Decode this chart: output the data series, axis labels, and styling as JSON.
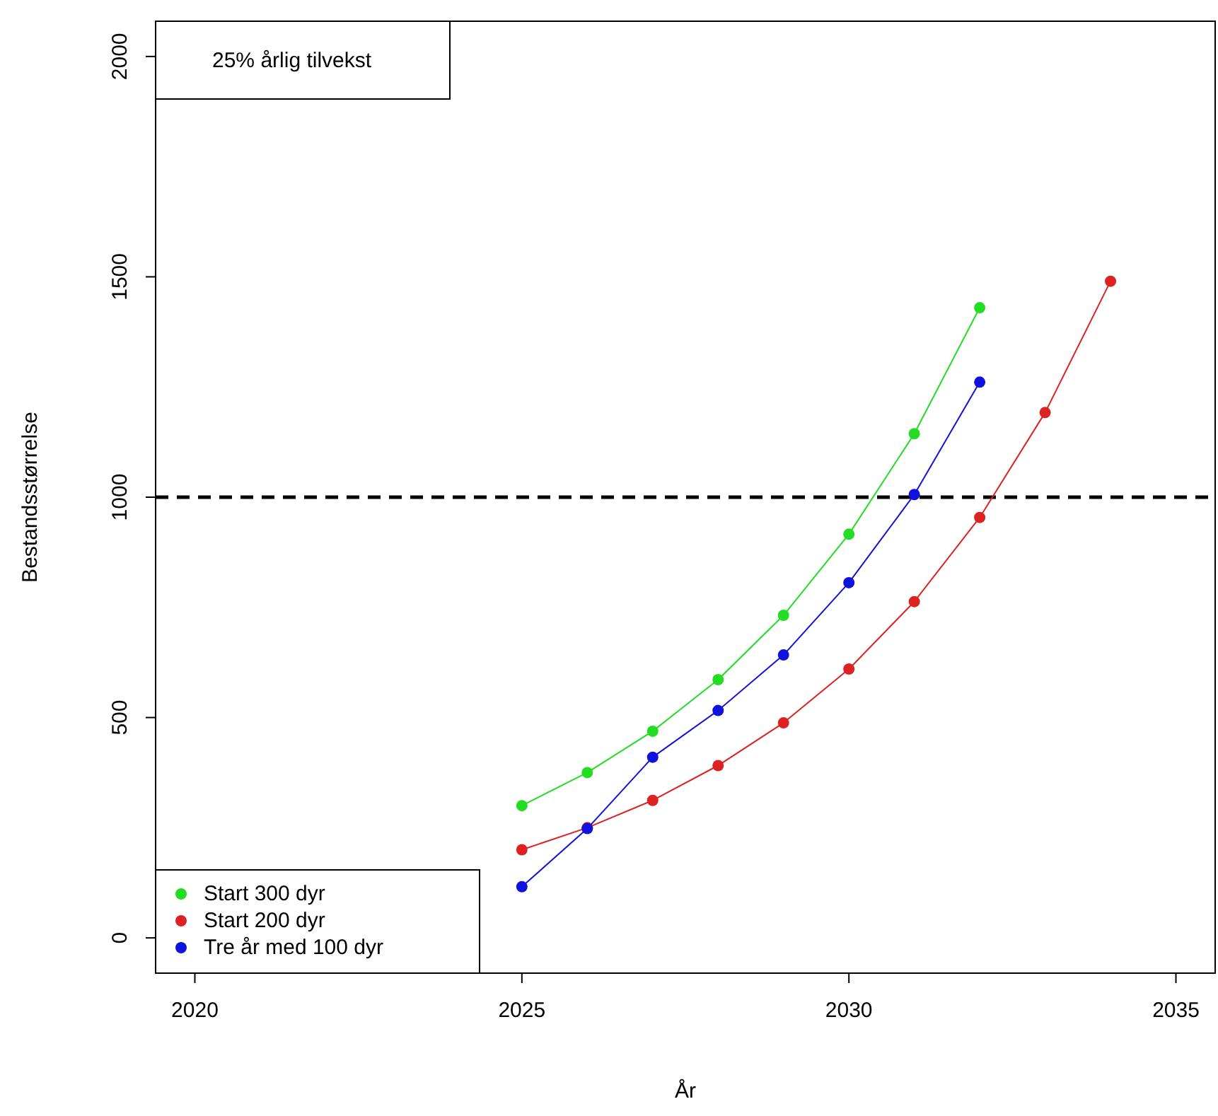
{
  "chart_data": {
    "type": "line",
    "xlabel": "År",
    "ylabel": "Bestandsstørrelse",
    "annotations": [
      "25% årlig tilvekst"
    ],
    "xlim": [
      2019.4,
      2035.6
    ],
    "xticks": [
      2020,
      2025,
      2030,
      2035
    ],
    "ylim": [
      -80,
      2080
    ],
    "yticks": [
      0,
      500,
      1000,
      1500,
      2000
    ],
    "grid": false,
    "legend": "bottom left",
    "marker": "circle",
    "line_style": "solid",
    "ref_lines": [
      {
        "axis": "y",
        "value": 1000,
        "color": "#000000",
        "line_style": "dashed"
      }
    ],
    "series": [
      {
        "name": "Start 300 dyr",
        "color": "#22dd22",
        "x": [
          2025,
          2026,
          2027,
          2028,
          2029,
          2030,
          2031,
          2032
        ],
        "values": [
          300,
          375,
          469,
          586,
          732,
          916,
          1144,
          1430
        ]
      },
      {
        "name": "Start 200 dyr",
        "color": "#dd2222",
        "x": [
          2025,
          2026,
          2027,
          2028,
          2029,
          2030,
          2031,
          2032,
          2033,
          2034
        ],
        "values": [
          200,
          250,
          312,
          391,
          488,
          610,
          763,
          954,
          1192,
          1490
        ]
      },
      {
        "name": "Tre år med 100 dyr",
        "color": "#1111dd",
        "x": [
          2025,
          2026,
          2027,
          2028,
          2029,
          2030,
          2031,
          2032
        ],
        "values": [
          116,
          248,
          410,
          516,
          642,
          806,
          1006,
          1261
        ]
      }
    ]
  }
}
